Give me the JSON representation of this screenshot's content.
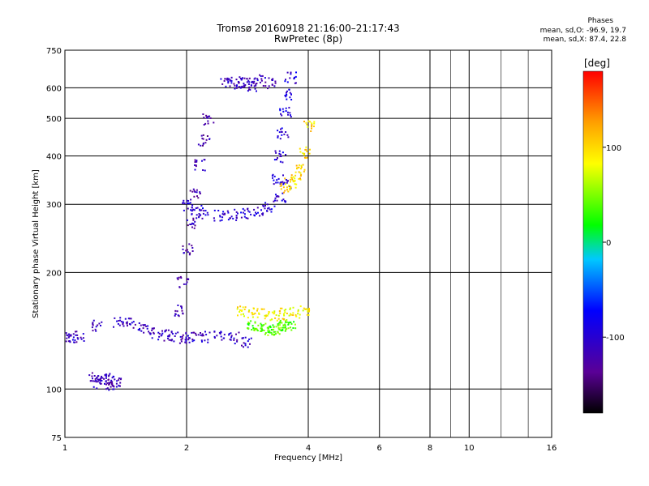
{
  "header": {
    "title": "Tromsø 20160918 21:16:00–21:17:43",
    "subtitle": "RwPretec (8p)"
  },
  "phase_info": {
    "heading": "Phases",
    "o_mode": "mean, sd,O: -96.9, 19.7",
    "x_mode": "mean, sd,X:  87.4, 22.8"
  },
  "chart_data": {
    "type": "scatter",
    "title": "Tromsø 20160918 21:16:00–21:17:43",
    "subtitle": "RwPretec (8p)",
    "xlabel": "Frequency [MHz]",
    "ylabel": "Stationary phase Virtual Height [km]",
    "x_scale": "log",
    "y_scale": "log",
    "xlim": [
      1,
      16
    ],
    "ylim": [
      75,
      750
    ],
    "x_ticks": [
      1,
      2,
      4,
      6,
      8,
      10,
      16
    ],
    "x_tick_labels": [
      "1",
      "2",
      "4",
      "6",
      "8",
      "10",
      "16"
    ],
    "y_ticks": [
      75,
      100,
      200,
      300,
      400,
      500,
      600,
      750
    ],
    "y_tick_labels": [
      "75",
      "100",
      "200",
      "300",
      "400",
      "500",
      "600",
      "750"
    ],
    "grid": true,
    "grid_color": "#000000",
    "colorbar": {
      "label": "[deg]",
      "range": [
        -180,
        180
      ],
      "ticks": [
        -100,
        0,
        100
      ],
      "tick_labels": [
        "-100",
        "0",
        "100"
      ],
      "colormap": "rainbow (black-purple-blue-cyan-green-yellow-orange-red)"
    },
    "series": [
      {
        "trace": "low O-mode E/F1 trace",
        "x": [
          1.0,
          1.03,
          1.08,
          1.2,
          1.35,
          1.45,
          1.55,
          1.65,
          1.75,
          1.85,
          1.95,
          2.05,
          2.2,
          2.4,
          2.6,
          2.8
        ],
        "y": [
          135,
          136,
          137,
          146,
          150,
          148,
          145,
          140,
          138,
          137,
          136,
          136,
          137,
          138,
          136,
          133
        ],
        "phase_deg": -110
      },
      {
        "trace": "sporadic low cluster",
        "x": [
          1.18,
          1.21,
          1.25,
          1.28,
          1.3,
          1.33
        ],
        "y": [
          108,
          104,
          107,
          103,
          106,
          104
        ],
        "phase_deg": -115
      },
      {
        "trace": "vertical O-mode column",
        "x": [
          1.9,
          1.95,
          2.0,
          2.05,
          2.1,
          2.15,
          2.2,
          2.25
        ],
        "y": [
          160,
          190,
          230,
          270,
          320,
          380,
          440,
          500
        ],
        "phase_deg": -120
      },
      {
        "trace": "F2 O-mode trace",
        "x": [
          2.0,
          2.1,
          2.2,
          2.4,
          2.6,
          2.8,
          3.0,
          3.2,
          3.4,
          3.5
        ],
        "y": [
          300,
          292,
          285,
          282,
          283,
          285,
          290,
          298,
          315,
          340
        ],
        "phase_deg": -100
      },
      {
        "trace": "upper O-mode column",
        "x": [
          3.35,
          3.4,
          3.45,
          3.5,
          3.55,
          3.6
        ],
        "y": [
          350,
          400,
          460,
          520,
          580,
          640
        ],
        "phase_deg": -95
      },
      {
        "trace": "X-mode F2 trace",
        "x": [
          3.5,
          3.6,
          3.7,
          3.8,
          3.9,
          4.0
        ],
        "y": [
          330,
          340,
          355,
          375,
          410,
          480
        ],
        "phase_deg": 100
      },
      {
        "trace": "X-mode low trace",
        "x": [
          2.7,
          2.9,
          3.1,
          3.3,
          3.5,
          3.7,
          3.9
        ],
        "y": [
          160,
          158,
          157,
          156,
          157,
          158,
          160
        ],
        "phase_deg": 90
      },
      {
        "trace": "green/lime low cluster",
        "x": [
          2.9,
          3.0,
          3.1,
          3.2,
          3.3,
          3.4,
          3.5,
          3.6
        ],
        "y": [
          146,
          145,
          144,
          143,
          144,
          145,
          146,
          147
        ],
        "phase_deg": 40
      },
      {
        "trace": "top cluster",
        "x": [
          2.5,
          2.6,
          2.7,
          2.8,
          2.9,
          3.0,
          3.2
        ],
        "y": [
          620,
          615,
          625,
          618,
          610,
          630,
          620
        ],
        "phase_deg": -110
      }
    ]
  }
}
